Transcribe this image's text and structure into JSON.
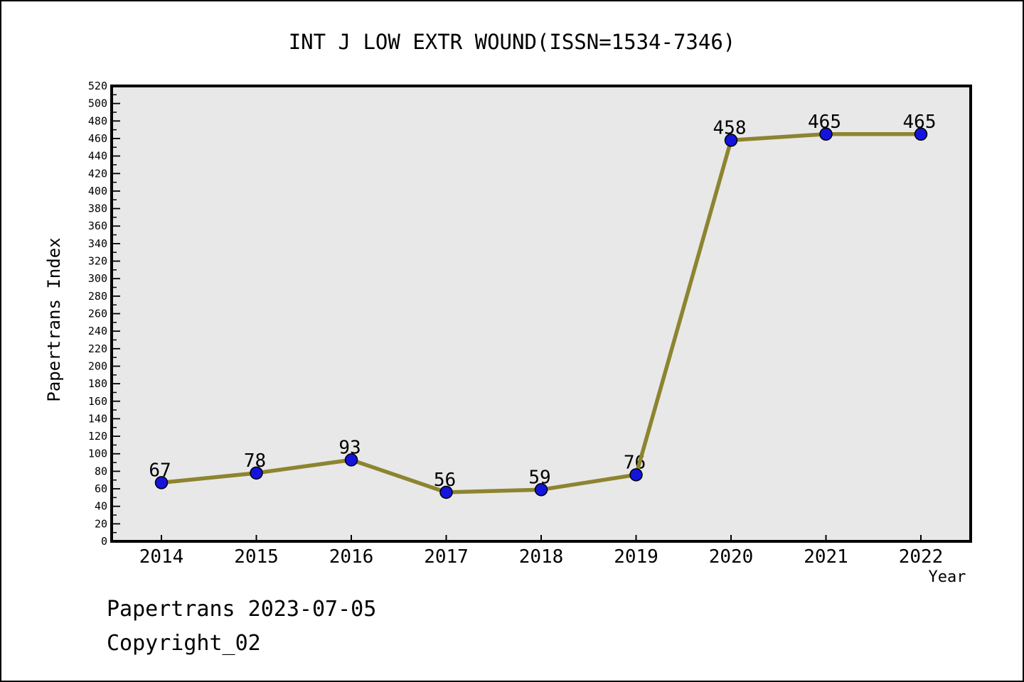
{
  "figure": {
    "footer_line1": "Papertrans 2023-07-05",
    "footer_line2": "Copyright_02"
  },
  "chart_data": {
    "type": "line",
    "title": "INT J LOW EXTR WOUND(ISSN=1534-7346)",
    "xlabel": "Year",
    "ylabel": "Papertrans Index",
    "categories": [
      "2014",
      "2015",
      "2016",
      "2017",
      "2018",
      "2019",
      "2020",
      "2021",
      "2022"
    ],
    "series": [
      {
        "name": "Papertrans Index",
        "values": [
          67,
          78,
          93,
          56,
          59,
          76,
          458,
          465,
          465
        ]
      }
    ],
    "point_labels": [
      "67",
      "78",
      "93",
      "56",
      "59",
      "76",
      "458",
      "465",
      "465"
    ],
    "ylim": [
      0,
      520
    ],
    "ytick_major_step": 20,
    "ytick_minor_step": 10,
    "grid": false,
    "legend_position": "none",
    "line_color": "#8D8430",
    "marker_color": "#1414DD",
    "marker_edge_color": "#000000",
    "plot_bg_color": "#E8E8E8",
    "axis_color": "#000000",
    "text_color": "#000000"
  }
}
